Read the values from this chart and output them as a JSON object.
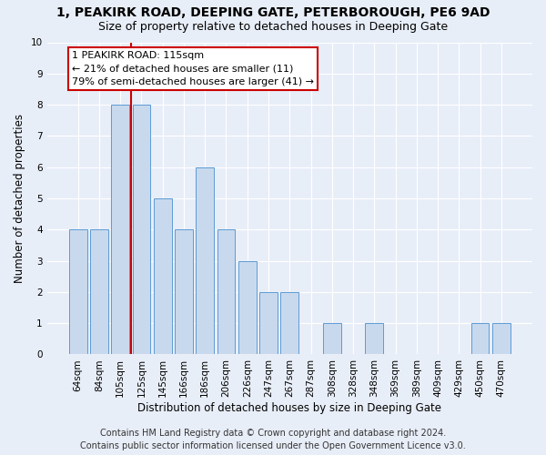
{
  "title1": "1, PEAKIRK ROAD, DEEPING GATE, PETERBOROUGH, PE6 9AD",
  "title2": "Size of property relative to detached houses in Deeping Gate",
  "xlabel": "Distribution of detached houses by size in Deeping Gate",
  "ylabel": "Number of detached properties",
  "categories": [
    "64sqm",
    "84sqm",
    "105sqm",
    "125sqm",
    "145sqm",
    "166sqm",
    "186sqm",
    "206sqm",
    "226sqm",
    "247sqm",
    "267sqm",
    "287sqm",
    "308sqm",
    "328sqm",
    "348sqm",
    "369sqm",
    "389sqm",
    "409sqm",
    "429sqm",
    "450sqm",
    "470sqm"
  ],
  "values": [
    4,
    4,
    8,
    8,
    5,
    4,
    6,
    4,
    3,
    2,
    2,
    0,
    1,
    0,
    1,
    0,
    0,
    0,
    0,
    1,
    1
  ],
  "bar_color": "#c9d9ed",
  "bar_edge_color": "#5b9bd5",
  "red_line_x": 2.5,
  "annotation_text": "1 PEAKIRK ROAD: 115sqm\n← 21% of detached houses are smaller (11)\n79% of semi-detached houses are larger (41) →",
  "footer1": "Contains HM Land Registry data © Crown copyright and database right 2024.",
  "footer2": "Contains public sector information licensed under the Open Government Licence v3.0.",
  "ylim": [
    0,
    10
  ],
  "yticks": [
    0,
    1,
    2,
    3,
    4,
    5,
    6,
    7,
    8,
    9,
    10
  ],
  "background_color": "#e8eef8",
  "plot_bg_color": "#e8eef8",
  "grid_color": "#ffffff",
  "annotation_box_color": "#ffffff",
  "annotation_box_edge": "#cc0000",
  "red_line_color": "#cc0000",
  "title1_fontsize": 10,
  "title2_fontsize": 9,
  "xlabel_fontsize": 8.5,
  "ylabel_fontsize": 8.5,
  "tick_fontsize": 7.5,
  "annotation_fontsize": 8,
  "footer_fontsize": 7
}
